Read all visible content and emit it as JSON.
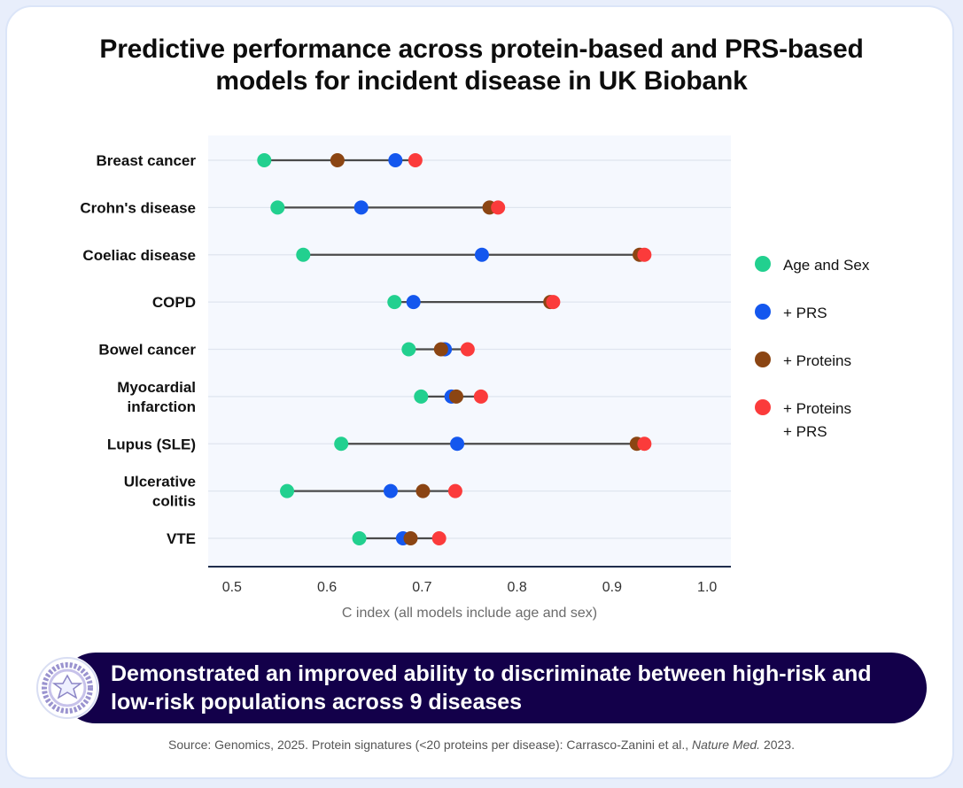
{
  "title_lines": [
    "Predictive performance across protein-based and PRS-based",
    "models for incident disease in UK Biobank"
  ],
  "chart_data": {
    "type": "scatter",
    "title": "Predictive performance across protein-based and PRS-based models for incident disease in UK Biobank",
    "xlabel": "C index (all models include age and sex)",
    "ylabel": "",
    "xlim": [
      0.475,
      1.025
    ],
    "xticks": [
      0.5,
      0.6,
      0.7,
      0.8,
      0.9,
      1.0
    ],
    "xtick_labels": [
      "0.5",
      "0.6",
      "0.7",
      "0.8",
      "0.9",
      "1.0"
    ],
    "grid": true,
    "legend_position": "right",
    "categories": [
      [
        "Breast cancer"
      ],
      [
        "Crohn's disease"
      ],
      [
        "Coeliac disease"
      ],
      [
        "COPD"
      ],
      [
        "Bowel cancer"
      ],
      [
        "Myocardial",
        "infarction"
      ],
      [
        "Lupus (SLE)"
      ],
      [
        "Ulcerative",
        "colitis"
      ],
      [
        "VTE"
      ]
    ],
    "series": [
      {
        "name": "Age and Sex",
        "color": "#22d08f",
        "values": [
          0.534,
          0.548,
          0.575,
          0.671,
          0.686,
          0.699,
          0.615,
          0.558,
          0.634
        ]
      },
      {
        "name": "+ PRS",
        "color": "#1457ee",
        "values": [
          0.672,
          0.636,
          0.763,
          0.691,
          0.724,
          0.731,
          0.737,
          0.667,
          0.68
        ]
      },
      {
        "name": "+ Proteins",
        "color": "#8b4513",
        "values": [
          0.611,
          0.771,
          0.929,
          0.835,
          0.72,
          0.736,
          0.926,
          0.701,
          0.688
        ]
      },
      {
        "name": "+ Proteins + PRS",
        "color": "#fb3b3b",
        "values": [
          0.693,
          0.78,
          0.934,
          0.838,
          0.748,
          0.762,
          0.934,
          0.735,
          0.718
        ]
      }
    ]
  },
  "legend": [
    {
      "label": "Age and Sex",
      "color": "#22d08f"
    },
    {
      "label": "+ PRS",
      "color": "#1457ee"
    },
    {
      "label": "+ Proteins",
      "color": "#8b4513"
    },
    {
      "label": "+ Proteins\n+ PRS",
      "color": "#fb3b3b"
    }
  ],
  "banner": {
    "text": "Demonstrated an improved ability to discriminate between high-risk and low-risk populations across 9 diseases"
  },
  "source": {
    "prefix": "Source: Genomics, 2025. Protein signatures (<20 proteins per disease): Carrasco-Zanini et al., ",
    "journal": "Nature Med.",
    "suffix": " 2023."
  },
  "colors": {
    "plot_bg": "#f5f8fe",
    "gridline": "#dfe5ef",
    "connector": "#4a4a4a",
    "axis": "#1f2d4d",
    "banner_bg": "#13004a",
    "badge_ring": "#9a93cf"
  }
}
